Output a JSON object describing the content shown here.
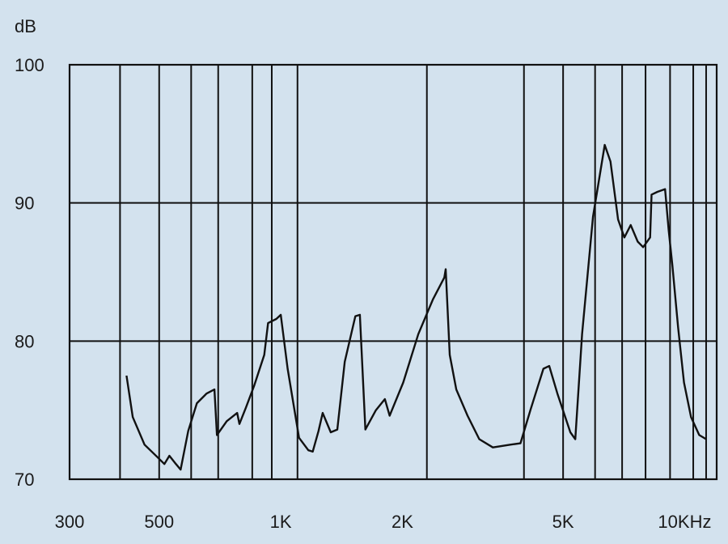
{
  "chart_data": {
    "type": "line",
    "title": "",
    "xlabel": "",
    "ylabel": "dB",
    "xscale": "log",
    "xlim": [
      300,
      12000
    ],
    "ylim": [
      70,
      100
    ],
    "grid": true,
    "legend": "none",
    "colors": {
      "background": "#d3e2ee",
      "line": "#111111",
      "grid": "#111111"
    },
    "y_ticks": [
      {
        "value": 100,
        "label": "100"
      },
      {
        "value": 90,
        "label": "90"
      },
      {
        "value": 80,
        "label": "80"
      },
      {
        "value": 70,
        "label": "70"
      }
    ],
    "x_ticks": [
      {
        "value": 300,
        "label": "300"
      },
      {
        "value": 500,
        "label": "500"
      },
      {
        "value": 1000,
        "label": "1K"
      },
      {
        "value": 2000,
        "label": "2K"
      },
      {
        "value": 5000,
        "label": "5K"
      },
      {
        "value": 10000,
        "label": "10KHz"
      }
    ],
    "x_gridlines": [
      400,
      500,
      600,
      700,
      850,
      950,
      1100,
      2300,
      4000,
      5000,
      6000,
      7000,
      8000,
      9200,
      10500,
      11300
    ],
    "y_gridlines": [
      100,
      90,
      80,
      70
    ],
    "series": [
      {
        "points": [
          [
            415,
            77.5
          ],
          [
            430,
            74.5
          ],
          [
            460,
            72.5
          ],
          [
            495,
            71.6
          ],
          [
            515,
            71.1
          ],
          [
            530,
            71.7
          ],
          [
            550,
            71.1
          ],
          [
            565,
            70.7
          ],
          [
            590,
            73.5
          ],
          [
            620,
            75.5
          ],
          [
            655,
            76.2
          ],
          [
            685,
            76.5
          ],
          [
            695,
            73.2
          ],
          [
            735,
            74.2
          ],
          [
            780,
            74.8
          ],
          [
            790,
            74.0
          ],
          [
            820,
            75.2
          ],
          [
            860,
            76.8
          ],
          [
            910,
            79.0
          ],
          [
            930,
            81.3
          ],
          [
            975,
            81.6
          ],
          [
            1000,
            81.9
          ],
          [
            1040,
            78.0
          ],
          [
            1110,
            73.0
          ],
          [
            1170,
            72.1
          ],
          [
            1200,
            72.0
          ],
          [
            1240,
            73.5
          ],
          [
            1270,
            74.8
          ],
          [
            1330,
            73.4
          ],
          [
            1380,
            73.6
          ],
          [
            1440,
            78.5
          ],
          [
            1530,
            81.8
          ],
          [
            1570,
            81.9
          ],
          [
            1620,
            73.6
          ],
          [
            1720,
            75.0
          ],
          [
            1810,
            75.8
          ],
          [
            1860,
            74.6
          ],
          [
            2010,
            77.0
          ],
          [
            2190,
            80.5
          ],
          [
            2380,
            83.0
          ],
          [
            2540,
            84.6
          ],
          [
            2560,
            85.2
          ],
          [
            2620,
            79.0
          ],
          [
            2720,
            76.5
          ],
          [
            2900,
            74.6
          ],
          [
            3100,
            72.9
          ],
          [
            3350,
            72.3
          ],
          [
            3700,
            72.5
          ],
          [
            3920,
            72.6
          ],
          [
            4150,
            75.0
          ],
          [
            4470,
            78.0
          ],
          [
            4620,
            78.2
          ],
          [
            4840,
            76.2
          ],
          [
            5210,
            73.4
          ],
          [
            5360,
            72.9
          ],
          [
            5570,
            80.5
          ],
          [
            5930,
            89.0
          ],
          [
            6340,
            94.2
          ],
          [
            6550,
            93.0
          ],
          [
            6840,
            88.8
          ],
          [
            7090,
            87.5
          ],
          [
            7350,
            88.4
          ],
          [
            7650,
            87.2
          ],
          [
            7890,
            86.8
          ],
          [
            8210,
            87.5
          ],
          [
            8280,
            90.6
          ],
          [
            8560,
            90.8
          ],
          [
            8940,
            91.0
          ],
          [
            9130,
            88.0
          ],
          [
            9320,
            85.5
          ],
          [
            9630,
            81.0
          ],
          [
            9960,
            77.0
          ],
          [
            10370,
            74.5
          ],
          [
            10860,
            73.2
          ],
          [
            11300,
            72.9
          ]
        ]
      }
    ]
  }
}
